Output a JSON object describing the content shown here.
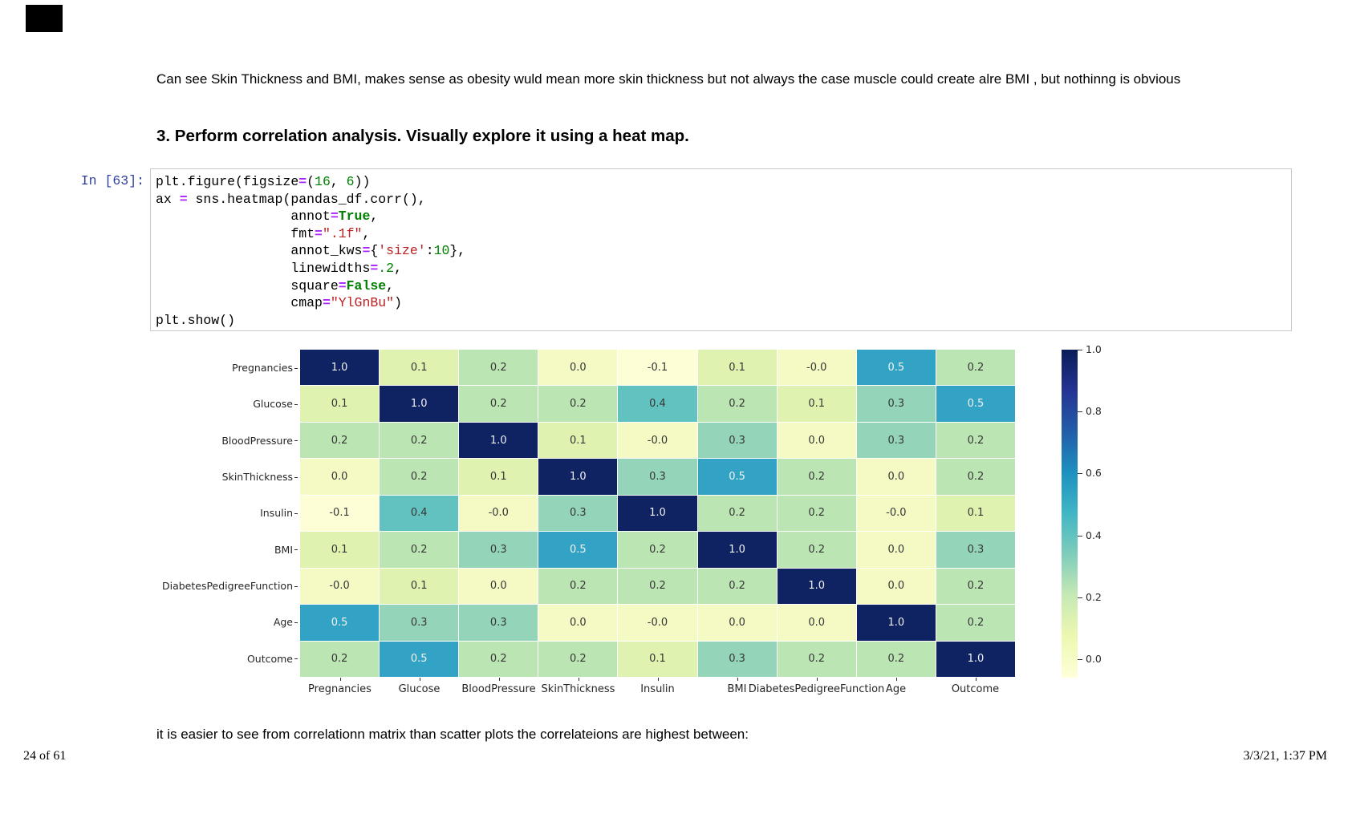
{
  "page": {
    "paragraph": "Can see Skin Thickness and BMI, makes sense as obesity wuld mean more skin thickness but not always the case muscle could create alre BMI , but nothinng is obvious",
    "heading": "3. Perform correlation analysis. Visually explore it using a heat map.",
    "bottom_text": "it is easier to see from correlationn matrix than scatter plots the correlateions are highest between:",
    "footer_left": "24 of 61",
    "footer_right": "3/3/21, 1:37 PM"
  },
  "code_cell": {
    "prompt": "In [63]:",
    "lines": [
      [
        [
          "t",
          "plt.figure(figsize"
        ],
        [
          "op",
          "="
        ],
        [
          "t",
          "("
        ],
        [
          "num",
          "16"
        ],
        [
          "t",
          ", "
        ],
        [
          "num",
          "6"
        ],
        [
          "t",
          "))"
        ]
      ],
      [
        [
          "t",
          "ax "
        ],
        [
          "op",
          "="
        ],
        [
          "t",
          " sns.heatmap(pandas_df.corr(),"
        ]
      ],
      [
        [
          "t",
          "                 annot"
        ],
        [
          "op",
          "="
        ],
        [
          "kw",
          "True"
        ],
        [
          "t",
          ","
        ]
      ],
      [
        [
          "t",
          "                 fmt"
        ],
        [
          "op",
          "="
        ],
        [
          "str",
          "\".1f\""
        ],
        [
          "t",
          ","
        ]
      ],
      [
        [
          "t",
          "                 annot_kws"
        ],
        [
          "op",
          "="
        ],
        [
          "t",
          "{"
        ],
        [
          "str",
          "'size'"
        ],
        [
          "t",
          ":"
        ],
        [
          "num",
          "10"
        ],
        [
          "t",
          "},"
        ]
      ],
      [
        [
          "t",
          "                 linewidths"
        ],
        [
          "op",
          "="
        ],
        [
          "num",
          ".2"
        ],
        [
          "t",
          ","
        ]
      ],
      [
        [
          "t",
          "                 square"
        ],
        [
          "op",
          "="
        ],
        [
          "kw",
          "False"
        ],
        [
          "t",
          ","
        ]
      ],
      [
        [
          "t",
          "                 cmap"
        ],
        [
          "op",
          "="
        ],
        [
          "str",
          "\"YlGnBu\""
        ],
        [
          "t",
          ")"
        ]
      ],
      [
        [
          "t",
          "plt.show()"
        ]
      ]
    ]
  },
  "chart_data": {
    "type": "heatmap",
    "title": "",
    "colormap": "YlGnBu",
    "categories": [
      "Pregnancies",
      "Glucose",
      "BloodPressure",
      "SkinThickness",
      "Insulin",
      "BMI",
      "DiabetesPedigreeFunction",
      "Age",
      "Outcome"
    ],
    "matrix": [
      [
        "1.0",
        "0.1",
        "0.2",
        "0.0",
        "-0.1",
        "0.1",
        "-0.0",
        "0.5",
        "0.2"
      ],
      [
        "0.1",
        "1.0",
        "0.2",
        "0.2",
        "0.4",
        "0.2",
        "0.1",
        "0.3",
        "0.5"
      ],
      [
        "0.2",
        "0.2",
        "1.0",
        "0.1",
        "-0.0",
        "0.3",
        "0.0",
        "0.3",
        "0.2"
      ],
      [
        "0.0",
        "0.2",
        "0.1",
        "1.0",
        "0.3",
        "0.5",
        "0.2",
        "0.0",
        "0.2"
      ],
      [
        "-0.1",
        "0.4",
        "-0.0",
        "0.3",
        "1.0",
        "0.2",
        "0.2",
        "-0.0",
        "0.1"
      ],
      [
        "0.1",
        "0.2",
        "0.3",
        "0.5",
        "0.2",
        "1.0",
        "0.2",
        "0.0",
        "0.3"
      ],
      [
        "-0.0",
        "0.1",
        "0.0",
        "0.2",
        "0.2",
        "0.2",
        "1.0",
        "0.0",
        "0.2"
      ],
      [
        "0.5",
        "0.3",
        "0.3",
        "0.0",
        "-0.0",
        "0.0",
        "0.0",
        "1.0",
        "0.2"
      ],
      [
        "0.2",
        "0.5",
        "0.2",
        "0.2",
        "0.1",
        "0.3",
        "0.2",
        "0.2",
        "1.0"
      ]
    ],
    "colorbar_ticks": [
      "1.0",
      "0.8",
      "0.6",
      "0.4",
      "0.2",
      "0.0"
    ],
    "colorbar_range": [
      -0.06,
      1.0
    ],
    "legend_position": "right",
    "value_colors": {
      "1.0": {
        "bg": "#0f2363",
        "text": "light"
      },
      "0.5": {
        "bg": "#33a3c5",
        "text": "light"
      },
      "0.4": {
        "bg": "#62c2bf",
        "text": "dark"
      },
      "0.3": {
        "bg": "#94d5b9",
        "text": "dark"
      },
      "0.2": {
        "bg": "#bce5b4",
        "text": "dark"
      },
      "0.1": {
        "bg": "#e0f2b0",
        "text": "dark"
      },
      "0.0": {
        "bg": "#f5fac4",
        "text": "dark"
      },
      "-0.0": {
        "bg": "#f5fac4",
        "text": "dark"
      },
      "-0.1": {
        "bg": "#fdfed6",
        "text": "dark"
      }
    },
    "colormap_stops": [
      "#ffffd9",
      "#edf8b1",
      "#c7e9b4",
      "#7fcdbb",
      "#41b6c4",
      "#1d91c0",
      "#225ea8",
      "#253494",
      "#081d58"
    ]
  }
}
